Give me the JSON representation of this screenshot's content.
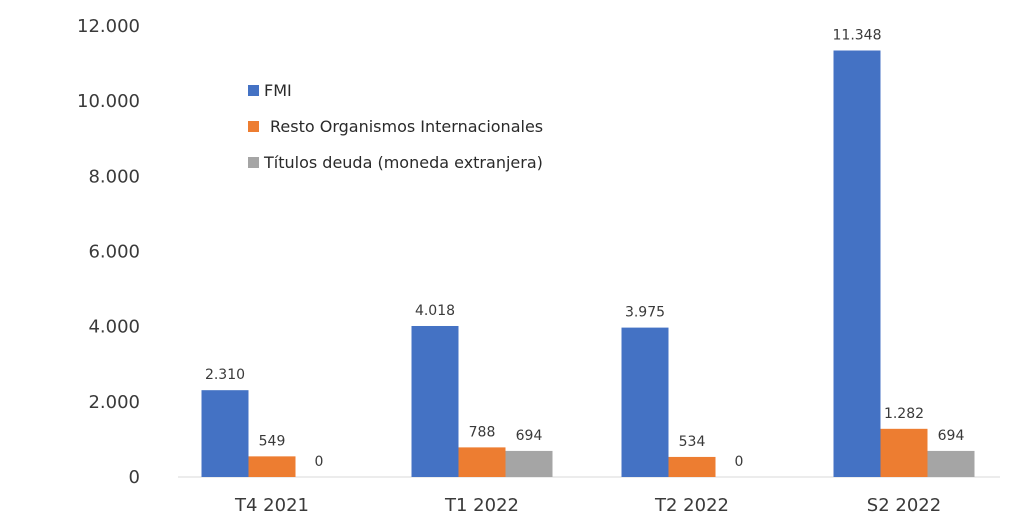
{
  "chart_data": {
    "type": "bar",
    "categories": [
      "T4 2021",
      "T1 2022",
      "T2 2022",
      "S2 2022"
    ],
    "series": [
      {
        "name": "FMI",
        "color": "#4472c4",
        "values": [
          2310,
          4018,
          3975,
          11348
        ],
        "labels": [
          "2.310",
          "4.018",
          "3.975",
          "11.348"
        ]
      },
      {
        "name": "Resto Organismos Internacionales",
        "color": "#ed7d31",
        "values": [
          549,
          788,
          534,
          1282
        ],
        "labels": [
          "549",
          "788",
          "534",
          "1.282"
        ]
      },
      {
        "name": "Títulos deuda (moneda extranjera)",
        "color": "#a5a5a5",
        "values": [
          0,
          694,
          0,
          694
        ],
        "labels": [
          "0",
          "694",
          "0",
          "694"
        ]
      }
    ],
    "ylim": [
      0,
      12000
    ],
    "yticks": [
      0,
      2000,
      4000,
      6000,
      8000,
      10000,
      12000
    ],
    "ytick_labels": [
      "0",
      "2.000",
      "4.000",
      "6.000",
      "8.000",
      "10.000",
      "12.000"
    ],
    "legend_position": "top-left",
    "grid": false
  }
}
